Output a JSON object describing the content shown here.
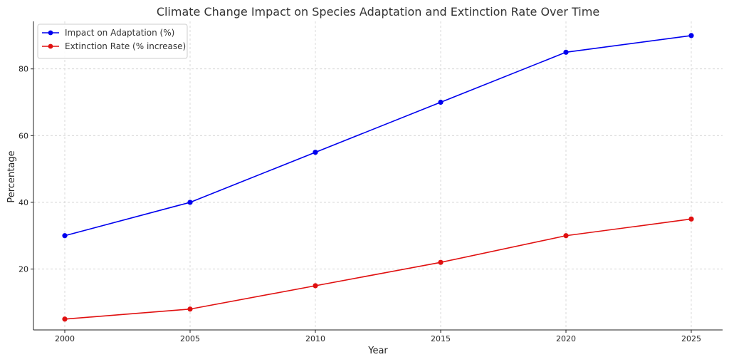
{
  "chart_data": {
    "type": "line",
    "title": "Climate Change Impact on Species Adaptation and Extinction Rate Over Time",
    "xlabel": "Year",
    "ylabel": "Percentage",
    "x": [
      2000,
      2005,
      2010,
      2015,
      2020,
      2025
    ],
    "xticks": [
      2000,
      2005,
      2010,
      2015,
      2020,
      2025
    ],
    "yticks": [
      20,
      40,
      60,
      80
    ],
    "xlim": [
      1998.75,
      2026.25
    ],
    "ylim": [
      1.75,
      94.25
    ],
    "grid": true,
    "legend_position": "top-left",
    "series": [
      {
        "name": "Impact on Adaptation (%)",
        "color": "#0000ee",
        "values": [
          30,
          40,
          55,
          70,
          85,
          90
        ]
      },
      {
        "name": "Extinction Rate (% increase)",
        "color": "#e01010",
        "values": [
          5,
          8,
          15,
          22,
          30,
          35
        ]
      }
    ]
  }
}
